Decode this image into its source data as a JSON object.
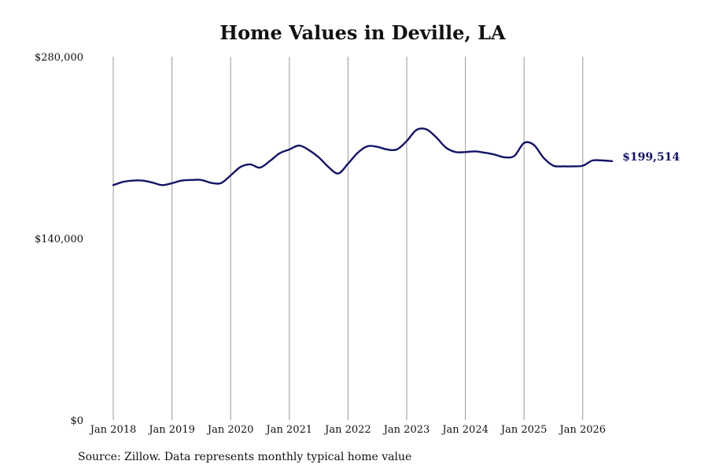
{
  "chart_data": {
    "type": "line",
    "title": "Home Values in Deville, LA",
    "xlabel": "",
    "ylabel": "",
    "ylim": [
      0,
      280000
    ],
    "y_ticks": [
      {
        "value": 0,
        "label": "$0"
      },
      {
        "value": 140000,
        "label": "$140,000"
      },
      {
        "value": 280000,
        "label": "$280,000"
      }
    ],
    "x_ticks": [
      "Jan 2018",
      "Jan 2019",
      "Jan 2020",
      "Jan 2021",
      "Jan 2022",
      "Jan 2023",
      "Jan 2024",
      "Jan 2025",
      "Jan 2026"
    ],
    "grid": "vertical lines at x ticks",
    "line_color": "#131366",
    "last_value_label": "$199,514",
    "series": [
      {
        "x": [
          "2018-01",
          "2018-03",
          "2018-05",
          "2018-07",
          "2018-09",
          "2018-11",
          "2019-01",
          "2019-03",
          "2019-05",
          "2019-07",
          "2019-09",
          "2019-11",
          "2020-01",
          "2020-03",
          "2020-05",
          "2020-07",
          "2020-09",
          "2020-11",
          "2021-01",
          "2021-03",
          "2021-05",
          "2021-07",
          "2021-09",
          "2021-11",
          "2022-01",
          "2022-03",
          "2022-05",
          "2022-07",
          "2022-09",
          "2022-11",
          "2023-01",
          "2023-03",
          "2023-05",
          "2023-07",
          "2023-09",
          "2023-11",
          "2024-01",
          "2024-03",
          "2024-05",
          "2024-07",
          "2024-09",
          "2024-11",
          "2025-01",
          "2025-03",
          "2025-05",
          "2025-07",
          "2025-09",
          "2025-11",
          "2026-01",
          "2026-03",
          "2026-05",
          "2026-07"
        ],
        "values": [
          181000,
          183500,
          184500,
          184500,
          183000,
          181000,
          182500,
          184500,
          185000,
          185000,
          182800,
          182500,
          188500,
          195000,
          197000,
          194500,
          199500,
          205500,
          208500,
          211500,
          208000,
          202500,
          195000,
          190000,
          197500,
          206000,
          211000,
          210500,
          208500,
          208500,
          215000,
          223500,
          224000,
          218000,
          210000,
          206500,
          206500,
          207000,
          206000,
          204500,
          202500,
          203500,
          213500,
          212000,
          202000,
          196000,
          195500,
          195500,
          196000,
          200000,
          200000,
          199514
        ]
      }
    ]
  },
  "source_text": "Source: Zillow. Data represents monthly typical home value"
}
